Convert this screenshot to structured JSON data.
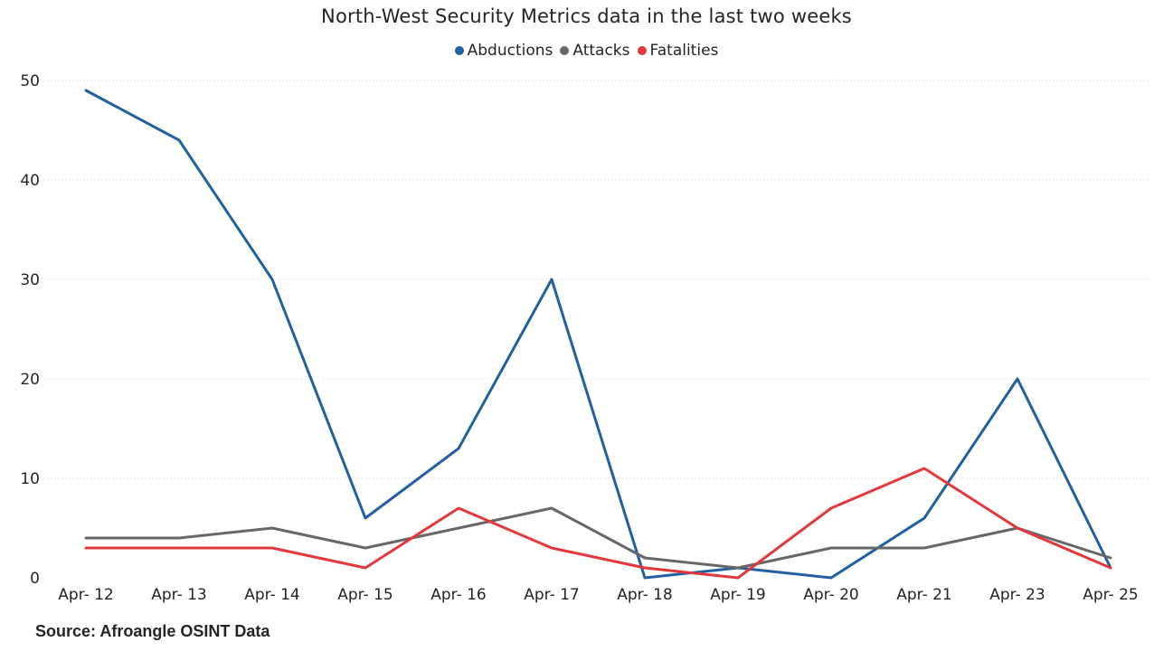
{
  "chart_data": {
    "type": "line",
    "title": "North-West Security Metrics data in the last two weeks",
    "xlabel": "",
    "ylabel": "",
    "categories": [
      "Apr- 12",
      "Apr- 13",
      "Apr- 14",
      "Apr- 15",
      "Apr- 16",
      "Apr- 17",
      "Apr- 18",
      "Apr- 19",
      "Apr- 20",
      "Apr- 21",
      "Apr- 23",
      "Apr- 25"
    ],
    "ylim": [
      0,
      50
    ],
    "yticks": [
      0,
      10,
      20,
      30,
      40,
      50
    ],
    "grid": true,
    "legend_position": "top-center",
    "series": [
      {
        "name": "Abductions",
        "color": "#2160A3",
        "values": [
          49,
          44,
          30,
          6,
          13,
          30,
          0,
          1,
          0,
          6,
          20,
          1
        ]
      },
      {
        "name": "Attacks",
        "color": "#676767",
        "values": [
          4,
          4,
          5,
          3,
          5,
          7,
          2,
          1,
          3,
          3,
          5,
          2
        ]
      },
      {
        "name": "Fatalities",
        "color": "#E3383B",
        "values": [
          3,
          3,
          3,
          1,
          7,
          3,
          1,
          0,
          7,
          11,
          5,
          1
        ]
      }
    ]
  },
  "source_note": "Source: Afroangle OSINT Data"
}
